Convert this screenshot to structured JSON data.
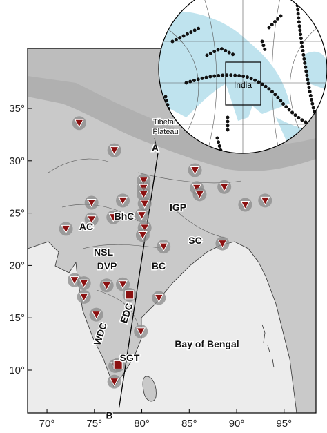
{
  "map": {
    "xlim": [
      67.96,
      98.36
    ],
    "ylim": [
      5.91,
      40.74
    ],
    "xticks": [
      {
        "value": 70,
        "label": "70°"
      },
      {
        "value": 75,
        "label": "75°"
      },
      {
        "value": 80,
        "label": "80°"
      },
      {
        "value": 85,
        "label": "85°"
      },
      {
        "value": 90,
        "label": "90°"
      },
      {
        "value": 95,
        "label": "95°"
      }
    ],
    "yticks": [
      {
        "value": 10,
        "label": "10°"
      },
      {
        "value": 15,
        "label": "15°"
      },
      {
        "value": 20,
        "label": "20°"
      },
      {
        "value": 25,
        "label": "25°"
      },
      {
        "value": 30,
        "label": "30°"
      },
      {
        "value": 35,
        "label": "35°"
      }
    ],
    "regions": [
      "IGP",
      "BhC",
      "AC",
      "NSL",
      "DVP",
      "BC",
      "SC",
      "EDC",
      "WDC",
      "SGT",
      "Bay of Bengal"
    ],
    "annotation": [
      "Tibetan",
      "Plateau"
    ],
    "inset_label": "India",
    "profile": {
      "start": {
        "label": "A",
        "lon": 81.7,
        "lat": 30.7
      },
      "end": {
        "label": "B",
        "lon": 77.6,
        "lat": 6.4
      }
    },
    "stations": [
      {
        "lon": 73.4,
        "lat": 33.6
      },
      {
        "lon": 77.1,
        "lat": 31.0
      },
      {
        "lon": 80.2,
        "lat": 28.1
      },
      {
        "lon": 80.2,
        "lat": 27.4
      },
      {
        "lon": 80.2,
        "lat": 26.8
      },
      {
        "lon": 80.3,
        "lat": 25.9
      },
      {
        "lon": 78.0,
        "lat": 26.2
      },
      {
        "lon": 74.7,
        "lat": 26.0
      },
      {
        "lon": 77.0,
        "lat": 24.6
      },
      {
        "lon": 80.0,
        "lat": 24.8
      },
      {
        "lon": 80.3,
        "lat": 23.6
      },
      {
        "lon": 80.1,
        "lat": 22.9
      },
      {
        "lon": 72.0,
        "lat": 23.5
      },
      {
        "lon": 74.7,
        "lat": 24.4
      },
      {
        "lon": 85.6,
        "lat": 29.1
      },
      {
        "lon": 85.8,
        "lat": 27.4
      },
      {
        "lon": 86.1,
        "lat": 26.8
      },
      {
        "lon": 88.7,
        "lat": 27.5
      },
      {
        "lon": 90.9,
        "lat": 25.8
      },
      {
        "lon": 93.0,
        "lat": 26.2
      },
      {
        "lon": 82.3,
        "lat": 21.8
      },
      {
        "lon": 88.5,
        "lat": 22.1
      },
      {
        "lon": 72.9,
        "lat": 18.6
      },
      {
        "lon": 73.9,
        "lat": 18.3
      },
      {
        "lon": 73.9,
        "lat": 17.0
      },
      {
        "lon": 76.3,
        "lat": 18.1
      },
      {
        "lon": 78.0,
        "lat": 18.2
      },
      {
        "lon": 81.8,
        "lat": 16.9
      },
      {
        "lon": 75.2,
        "lat": 15.3
      },
      {
        "lon": 79.9,
        "lat": 13.7
      },
      {
        "lon": 77.2,
        "lat": 10.4
      },
      {
        "lon": 77.1,
        "lat": 8.9
      }
    ],
    "sites": [
      {
        "lon": 78.7,
        "lat": 17.2
      },
      {
        "lon": 77.5,
        "lat": 10.5
      }
    ]
  }
}
